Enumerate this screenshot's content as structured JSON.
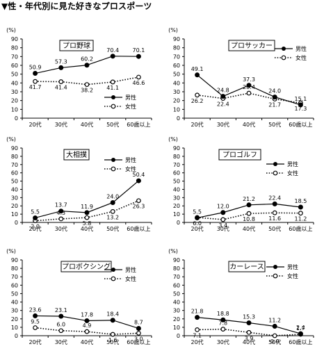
{
  "page": {
    "title": "▼性・年代別に見た好きなプロスポーツ"
  },
  "chart_data": [
    {
      "type": "line",
      "title": "プロ野球",
      "ylabel": "(%)",
      "ylim": [
        0,
        90
      ],
      "yticks": [
        0,
        10,
        20,
        30,
        40,
        50,
        60,
        70,
        80,
        90
      ],
      "categories": [
        "20代",
        "30代",
        "40代",
        "50代",
        "60歳以上"
      ],
      "series": [
        {
          "name": "男性",
          "values": [
            50.9,
            57.3,
            60.2,
            70.4,
            70.1
          ]
        },
        {
          "name": "女性",
          "values": [
            41.7,
            41.4,
            38.2,
            41.1,
            46.6
          ]
        }
      ],
      "value_labels": {
        "男性": [
          "50.9",
          "57.3",
          "60.2",
          "70.4",
          "70.1"
        ],
        "女性": [
          "41.7",
          "41.4",
          "38.2",
          "41.1",
          "46.6"
        ]
      },
      "legend": "inside-bottom-right",
      "grid": false
    },
    {
      "type": "line",
      "title": "プロサッカー",
      "ylabel": "(%)",
      "ylim": [
        0,
        90
      ],
      "yticks": [
        0,
        10,
        20,
        30,
        40,
        50,
        60,
        70,
        80,
        90
      ],
      "categories": [
        "20代",
        "30代",
        "40代",
        "50代",
        "60歳以上"
      ],
      "series": [
        {
          "name": "男性",
          "values": [
            49.1,
            24.8,
            37.3,
            24.0,
            15.1
          ]
        },
        {
          "name": "女性",
          "values": [
            26.2,
            22.4,
            28.4,
            21.7,
            17.3
          ]
        }
      ],
      "value_labels": {
        "男性": [
          "49.1",
          "24.8",
          "37.3",
          "24.0",
          "15.1"
        ],
        "女性": [
          "26.2",
          "22.4",
          "28.4",
          "21.7",
          "17.3"
        ]
      },
      "legend": "top-right",
      "grid": false
    },
    {
      "type": "line",
      "title": "大相撲",
      "ylabel": "(%)",
      "ylim": [
        0,
        90
      ],
      "yticks": [
        0,
        10,
        20,
        30,
        40,
        50,
        60,
        70,
        80,
        90
      ],
      "categories": [
        "20代",
        "30代",
        "40代",
        "50代",
        "60歳以上"
      ],
      "series": [
        {
          "name": "男性",
          "values": [
            5.5,
            13.7,
            11.9,
            24.0,
            50.4
          ]
        },
        {
          "name": "女性",
          "values": [
            2.0,
            4.3,
            5.8,
            13.2,
            26.3
          ]
        }
      ],
      "value_labels": {
        "男性": [
          "5.5",
          "13.7",
          "11.9",
          "24.0",
          "50.4"
        ],
        "女性": [
          "2.0",
          "4.3",
          "5.8",
          "13.2",
          "26.3"
        ]
      },
      "legend": "top-right",
      "grid": false
    },
    {
      "type": "line",
      "title": "プロゴルフ",
      "ylabel": "(%)",
      "ylim": [
        0,
        90
      ],
      "yticks": [
        0,
        10,
        20,
        30,
        40,
        50,
        60,
        70,
        80,
        90
      ],
      "categories": [
        "20代",
        "30代",
        "40代",
        "50代",
        "60歳以上"
      ],
      "series": [
        {
          "name": "男性",
          "values": [
            5.5,
            12.0,
            21.2,
            22.4,
            18.5
          ]
        },
        {
          "name": "女性",
          "values": [
            6.0,
            3.4,
            10.8,
            11.6,
            11.2
          ]
        }
      ],
      "value_labels": {
        "男性": [
          "5.5",
          "12.0",
          "21.2",
          "22.4",
          "18.5"
        ],
        "女性": [
          "6.0",
          "3.4",
          "10.8",
          "11.6",
          "11.2"
        ]
      },
      "legend": "top-right",
      "grid": false
    },
    {
      "type": "line",
      "title": "プロボクシング",
      "ylabel": "(%)",
      "ylim": [
        0,
        90
      ],
      "yticks": [
        0,
        10,
        20,
        30,
        40,
        50,
        60,
        70,
        80,
        90
      ],
      "categories": [
        "20代",
        "30代",
        "40代",
        "50代",
        "60歳以上"
      ],
      "series": [
        {
          "name": "男性",
          "values": [
            23.6,
            23.1,
            17.8,
            18.4,
            8.7
          ]
        },
        {
          "name": "女性",
          "values": [
            9.5,
            6.0,
            4.9,
            1.6,
            3.0
          ]
        }
      ],
      "value_labels": {
        "男性": [
          "23.6",
          "23.1",
          "17.8",
          "18.4",
          "8.7"
        ],
        "女性": [
          "9.5",
          "6.0",
          "4.9",
          "1.6",
          "3.0"
        ]
      },
      "legend": "top-right",
      "grid": false
    },
    {
      "type": "line",
      "title": "カーレース",
      "ylabel": "(%)",
      "ylim": [
        0,
        90
      ],
      "yticks": [
        0,
        10,
        20,
        30,
        40,
        50,
        60,
        70,
        80,
        90
      ],
      "categories": [
        "20代",
        "30代",
        "40代",
        "50代",
        "60歳以上"
      ],
      "series": [
        {
          "name": "男性",
          "values": [
            21.8,
            18.8,
            15.3,
            11.2,
            2.4
          ]
        },
        {
          "name": "女性",
          "values": [
            7.1,
            7.8,
            3.9,
            0.0,
            1.7
          ]
        }
      ],
      "value_labels": {
        "男性": [
          "21.8",
          "18.8",
          "15.3",
          "11.2",
          "2.4"
        ],
        "女性": [
          "7.1",
          "7.8",
          "3.9",
          "0.0",
          "1.7"
        ]
      },
      "legend": "top-right",
      "grid": false
    }
  ]
}
